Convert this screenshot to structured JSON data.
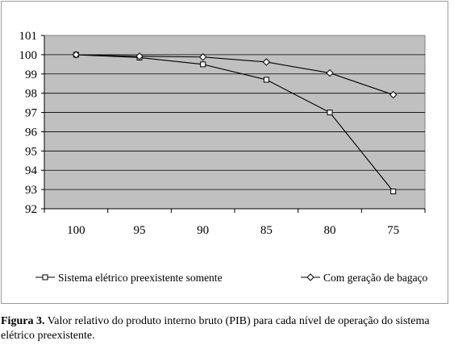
{
  "chart_data": {
    "type": "line",
    "title": "",
    "xlabel": "",
    "ylabel": "",
    "categories": [
      "100",
      "95",
      "90",
      "85",
      "80",
      "75"
    ],
    "ylim": [
      92,
      101
    ],
    "yticks": [
      92,
      93,
      94,
      95,
      96,
      97,
      98,
      99,
      100,
      101
    ],
    "grid": "horizontal",
    "legend_position": "bottom",
    "plot_background": "#c0c0c0",
    "series": [
      {
        "name": "Sistema elétrico preexistente somente",
        "marker": "square",
        "values": [
          100.0,
          99.85,
          99.5,
          98.7,
          97.0,
          92.9
        ]
      },
      {
        "name": "Com geração de bagaço",
        "marker": "diamond",
        "values": [
          100.0,
          99.92,
          99.88,
          99.62,
          99.05,
          97.92
        ]
      }
    ]
  },
  "caption": {
    "label": "Figura 3.",
    "text": " Valor relativo do produto interno bruto (PIB) para cada nível de operação do sistema elétrico preexistente."
  }
}
